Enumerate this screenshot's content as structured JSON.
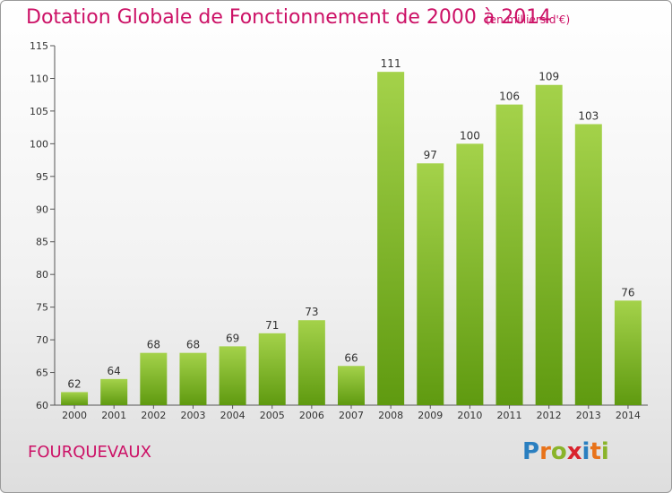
{
  "header": {
    "title": "Dotation Globale de Fonctionnement de 2000 à 2014",
    "subtitle": "(en milliers d'€)"
  },
  "footer": {
    "commune": "FOURQUEVAUX",
    "logo_letters": [
      "P",
      "r",
      "o",
      "x",
      "i",
      "t",
      "i"
    ],
    "logo_colors": [
      "#2a7fc0",
      "#e8731a",
      "#8ab42a",
      "#d9232e",
      "#2a7fc0",
      "#e8731a",
      "#8ab42a"
    ]
  },
  "chart_data": {
    "type": "bar",
    "categories": [
      "2000",
      "2001",
      "2002",
      "2003",
      "2004",
      "2005",
      "2006",
      "2007",
      "2008",
      "2009",
      "2010",
      "2011",
      "2012",
      "2013",
      "2014"
    ],
    "values": [
      62,
      64,
      68,
      68,
      69,
      71,
      73,
      66,
      111,
      97,
      100,
      106,
      109,
      103,
      76
    ],
    "data_labels": [
      "62",
      "64",
      "68",
      "68",
      "69",
      "71",
      "73",
      "66",
      "111",
      "97",
      "100",
      "106",
      "109",
      "103",
      "76"
    ],
    "ylim": [
      60,
      115
    ],
    "yticks": [
      "60",
      "65",
      "70",
      "75",
      "80",
      "85",
      "90",
      "95",
      "100",
      "105",
      "110",
      "115"
    ],
    "bar_color_top": "#a4d24a",
    "bar_color_bottom": "#5f9a10",
    "grid": false
  }
}
